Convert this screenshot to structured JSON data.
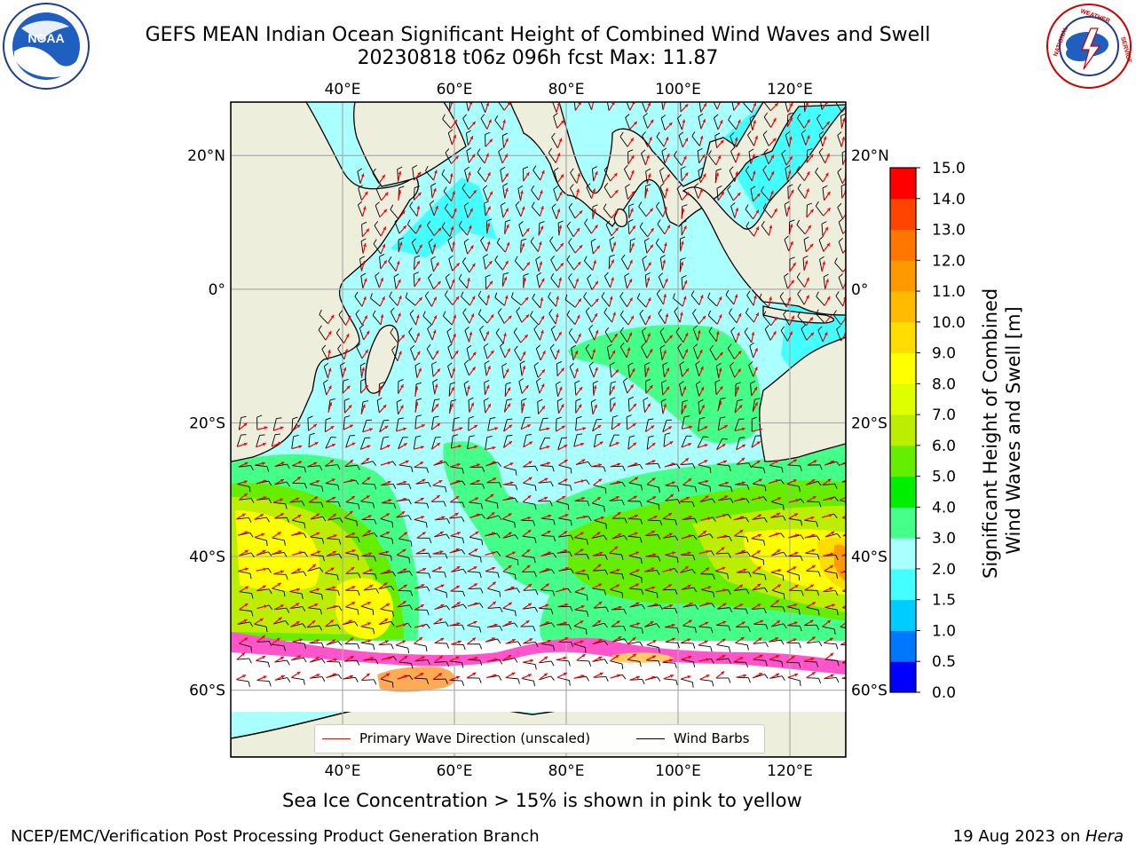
{
  "header": {
    "title_line1": "GEFS MEAN Indian Ocean Significant Height of Combined Wind Waves and Swell",
    "title_line2": "20230818 t06z 096h fcst   Max: 11.87"
  },
  "logos": {
    "left": {
      "icon": "noaa-logo",
      "text": "NOAA",
      "ring_text": "NATIONAL OCEANIC AND ATMOSPHERIC ADMINISTRATION · U.S. DEPARTMENT OF COMMERCE"
    },
    "right": {
      "icon": "nws-logo",
      "ring_text": "NATIONAL WEATHER SERVICE"
    }
  },
  "map": {
    "region": "Indian Ocean",
    "lon_range": [
      20,
      130
    ],
    "lat_range": [
      -70,
      28
    ],
    "lon_ticks": [
      {
        "value": 40,
        "label": "40°E"
      },
      {
        "value": 60,
        "label": "60°E"
      },
      {
        "value": 80,
        "label": "80°E"
      },
      {
        "value": 100,
        "label": "100°E"
      },
      {
        "value": 120,
        "label": "120°E"
      }
    ],
    "lat_ticks": [
      {
        "value": 20,
        "label": "20°N"
      },
      {
        "value": 0,
        "label": "0°"
      },
      {
        "value": -20,
        "label": "20°S"
      },
      {
        "value": -40,
        "label": "40°S"
      },
      {
        "value": -60,
        "label": "60°S"
      }
    ],
    "grid": true,
    "colors": {
      "land": "#eeeedd",
      "coast": "#000000",
      "wave_arrow": "#ff0000",
      "wind_barb": "#000000",
      "ice": "#ff55cc"
    }
  },
  "colorbar": {
    "label_line1": "Significant Height of Combined",
    "label_line2": "Wind Waves and Swell [m]",
    "ticks": [
      "0.0",
      "0.5",
      "1.0",
      "1.5",
      "2.0",
      "3.0",
      "4.0",
      "5.0",
      "6.0",
      "7.0",
      "8.0",
      "9.0",
      "10.0",
      "11.0",
      "12.0",
      "13.0",
      "14.0",
      "15.0"
    ],
    "colors": [
      "#0000ff",
      "#0077ff",
      "#00ccff",
      "#44ffff",
      "#aaffff",
      "#44ff88",
      "#00ee00",
      "#66ee00",
      "#bbee00",
      "#ddff00",
      "#ffff00",
      "#ffdd00",
      "#ffbb00",
      "#ff9900",
      "#ff7700",
      "#ff4400",
      "#ff0000"
    ]
  },
  "legend": {
    "wave_direction_label": "Primary Wave Direction (unscaled)",
    "wind_barbs_label": "Wind Barbs",
    "wave_color": "#ff0000",
    "barb_color": "#000000"
  },
  "notes": {
    "sea_ice": "Sea Ice Concentration > 15% is shown in pink to yellow"
  },
  "footer": {
    "left": "NCEP/EMC/Verification Post Processing Product Generation Branch",
    "date": "19 Aug 2023 on ",
    "machine": "Hera"
  }
}
